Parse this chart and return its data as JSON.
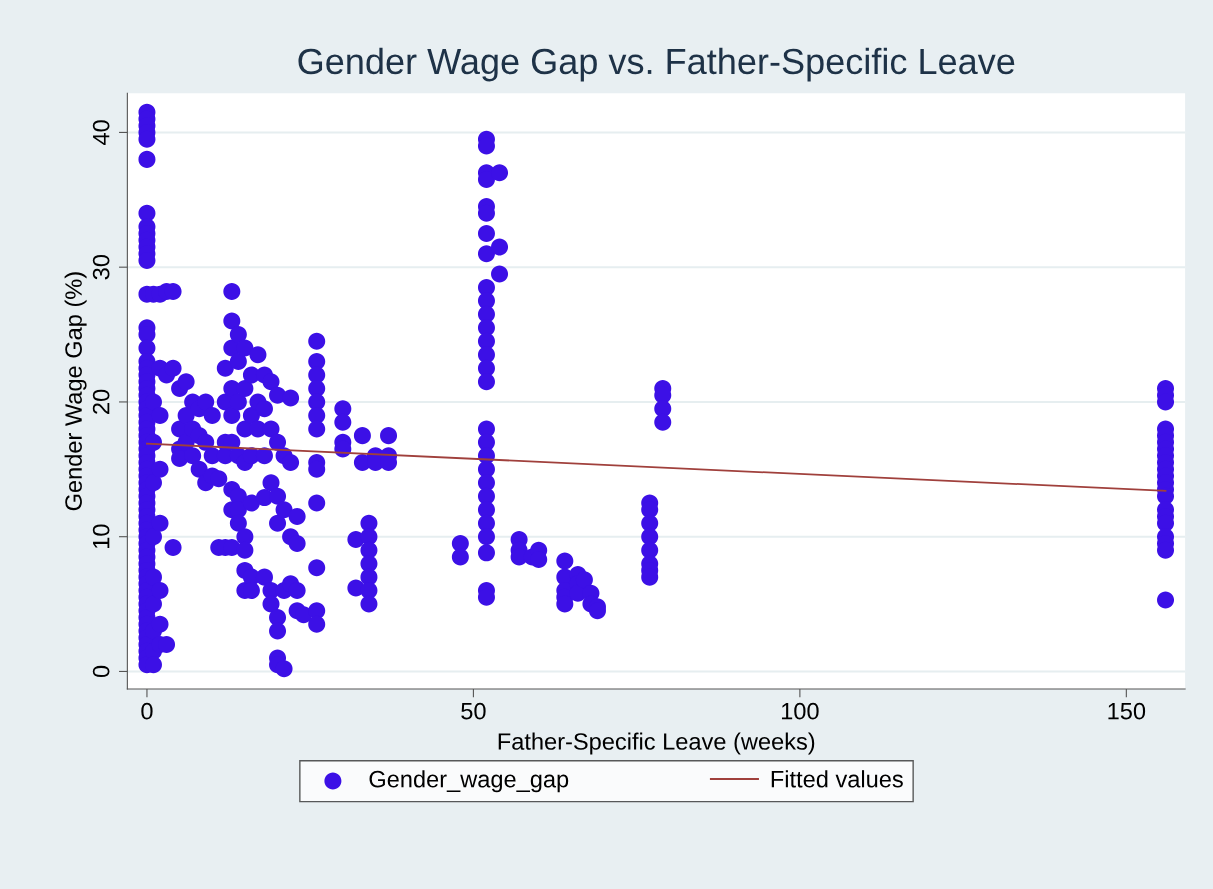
{
  "chart_data": {
    "type": "scatter",
    "title": "Gender Wage Gap vs. Father-Specific Leave",
    "xlabel": "Father-Specific Leave (weeks)",
    "ylabel": "Gender Wage Gap (%)",
    "xlim": [
      -3,
      159
    ],
    "xticks": [
      0,
      50,
      100,
      150
    ],
    "ylim": [
      -1.3,
      42.9
    ],
    "yticks": [
      0,
      10,
      20,
      30,
      40
    ],
    "grid": "y",
    "legend": "bottom",
    "marker": "circle",
    "series": [
      {
        "name": "Gender_wage_gap",
        "color": "#3c10e6",
        "x": [
          0,
          0,
          0,
          0,
          0,
          0,
          0,
          0,
          0,
          0,
          0,
          0,
          0,
          0,
          0,
          0,
          0,
          0,
          0,
          0,
          0,
          0,
          0,
          0,
          0,
          0,
          0,
          0,
          0,
          0,
          0,
          0,
          0,
          0,
          0,
          0,
          0,
          0,
          0,
          0,
          0,
          0,
          0,
          0,
          0,
          0,
          0,
          0,
          0,
          0,
          0,
          0,
          0,
          0,
          0,
          0,
          0,
          0,
          0,
          0,
          0,
          0,
          0,
          1,
          1,
          1,
          1,
          1,
          1,
          1,
          1,
          1,
          1,
          2,
          2,
          2,
          2,
          2,
          2,
          2,
          2,
          3,
          3,
          3,
          4,
          4,
          4,
          5,
          5,
          5,
          5,
          6,
          6,
          6,
          7,
          7,
          7,
          8,
          8,
          8,
          9,
          9,
          9,
          10,
          10,
          10,
          11,
          11,
          12,
          12,
          12,
          12,
          12,
          13,
          13,
          13,
          13,
          13,
          13,
          13,
          13,
          13,
          14,
          14,
          14,
          14,
          14,
          14,
          14,
          15,
          15,
          15,
          15,
          15,
          15,
          15,
          15,
          16,
          16,
          16,
          16,
          16,
          16,
          17,
          17,
          17,
          18,
          18,
          18,
          18,
          18,
          19,
          19,
          19,
          19,
          19,
          20,
          20,
          20,
          20,
          20,
          20,
          20,
          20,
          21,
          21,
          21,
          21,
          22,
          22,
          22,
          22,
          23,
          23,
          23,
          23,
          24,
          26,
          26,
          26,
          26,
          26,
          26,
          26,
          26,
          26,
          26,
          26,
          26,
          26,
          30,
          30,
          30,
          30,
          32,
          32,
          33,
          33,
          34,
          34,
          34,
          34,
          34,
          34,
          34,
          35,
          35,
          37,
          37,
          37,
          48,
          48,
          52,
          52,
          52,
          52,
          52,
          52,
          52,
          52,
          52,
          52,
          52,
          52,
          52,
          52,
          52,
          52,
          52,
          52,
          52,
          52,
          52,
          52,
          52,
          52,
          52,
          52,
          52,
          52,
          54,
          54,
          54,
          57,
          57,
          57,
          59,
          60,
          60,
          64,
          64,
          64,
          64,
          64,
          66,
          66,
          66,
          67,
          68,
          68,
          69,
          69,
          77,
          77,
          77,
          77,
          77,
          77,
          77,
          77,
          79,
          79,
          79,
          79,
          156,
          156,
          156,
          156,
          156,
          156,
          156,
          156,
          156,
          156,
          156,
          156,
          156,
          156,
          156,
          156,
          156,
          156,
          156,
          156,
          156
        ],
        "values": [
          41.5,
          41,
          40.5,
          40,
          39.5,
          38,
          34,
          33,
          32.5,
          32,
          31.5,
          31,
          30.5,
          28,
          25.5,
          25,
          24,
          23,
          22.5,
          22,
          21.5,
          21,
          20.5,
          20,
          19.5,
          19,
          18.5,
          18,
          17.5,
          17,
          16.5,
          16,
          15.5,
          15,
          14.5,
          14,
          13.5,
          13,
          12.5,
          12,
          11.5,
          11,
          10.5,
          10,
          9.5,
          9,
          8.5,
          8,
          7.5,
          7,
          6.5,
          6,
          5.5,
          5,
          4.5,
          4,
          3.5,
          3,
          2.5,
          2,
          1.5,
          1,
          0.5,
          28,
          20,
          17,
          14,
          10,
          7,
          5,
          3,
          1.5,
          0.5,
          28,
          22.5,
          19,
          15,
          11,
          6,
          3.5,
          2,
          28.2,
          22,
          2,
          28.2,
          22.5,
          9.2,
          21,
          18,
          16.5,
          15.8,
          21.5,
          19,
          17,
          20,
          18,
          16,
          19.5,
          17.5,
          15,
          20,
          17,
          14,
          19,
          16,
          14.5,
          14.3,
          9.2,
          9.2,
          22.5,
          20,
          17,
          16,
          28.2,
          26,
          24,
          21,
          19,
          17,
          13.5,
          12,
          9.2,
          25,
          23,
          20,
          16,
          13,
          12,
          11,
          24,
          21,
          18,
          15.5,
          10,
          9,
          7.5,
          6,
          22,
          19,
          16,
          12.5,
          7,
          6,
          23.5,
          20,
          18,
          22,
          19.5,
          16,
          12.9,
          7,
          21.5,
          18,
          14,
          6,
          5,
          20.5,
          17,
          13,
          11,
          4,
          3,
          1,
          0.5,
          16,
          12,
          6,
          0.2,
          20.3,
          15.5,
          10,
          6.5,
          11.5,
          9.5,
          6,
          4.5,
          4.2,
          24.5,
          23,
          22,
          21,
          20,
          19,
          18,
          15.5,
          15,
          12.5,
          7.7,
          4.5,
          3.5,
          19.5,
          18.5,
          17,
          16.5,
          9.8,
          6.2,
          17.5,
          15.5,
          11,
          10,
          9,
          8,
          7,
          6,
          5,
          16,
          15.5,
          17.5,
          16,
          15.5,
          9.5,
          8.5,
          39.5,
          39,
          37,
          36.5,
          34.5,
          34,
          32.5,
          31,
          28.5,
          27.5,
          26.5,
          25.5,
          24.5,
          23.5,
          22.5,
          21.5,
          18,
          17,
          16,
          15,
          14,
          13,
          12,
          11,
          10,
          8.8,
          6,
          5.5,
          29.5,
          31.5,
          37,
          9.8,
          9,
          8.5,
          8.5,
          9,
          8.3,
          8.2,
          7,
          6,
          5.5,
          5,
          7.2,
          6.5,
          5.8,
          6.8,
          5.8,
          5,
          4.8,
          4.5,
          12.5,
          12,
          11,
          10,
          9,
          8,
          7.5,
          7,
          21,
          20.5,
          19.5,
          18.5,
          21,
          20.5,
          20,
          18,
          17.5,
          17,
          16.5,
          16,
          15.5,
          15,
          14.5,
          14,
          13.5,
          13,
          12,
          11.5,
          11,
          10,
          9.5,
          9,
          5.3
        ]
      },
      {
        "name": "Fitted values",
        "type": "line",
        "marker": "none",
        "color": "#a0403c",
        "x": [
          0,
          156
        ],
        "values": [
          16.9,
          13.4
        ]
      }
    ]
  }
}
